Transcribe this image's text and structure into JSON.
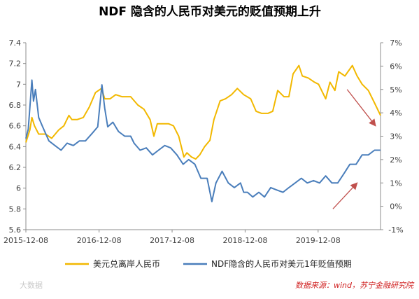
{
  "chart_data": {
    "type": "line",
    "title": "NDF 隐含的人民币对美元的贬值预期上升",
    "x_ticks": [
      "2015-12-08",
      "2016-12-08",
      "2017-12-08",
      "2018-12-08",
      "2019-12-08"
    ],
    "x_range": [
      "2015-12-08",
      "2020-10-15"
    ],
    "left_axis": {
      "ticks": [
        "5.6",
        "5.8",
        "6",
        "6.2",
        "6.4",
        "6.6",
        "6.8",
        "7",
        "7.2",
        "7.4"
      ],
      "range": [
        5.6,
        7.4
      ]
    },
    "right_axis": {
      "ticks": [
        "-1%",
        "0%",
        "1%",
        "2%",
        "3%",
        "4%",
        "5%",
        "6%",
        "7%"
      ],
      "range": [
        -1,
        7
      ]
    },
    "series": [
      {
        "name": "美元兑离岸人民币",
        "axis": "left",
        "color": "#F2B800",
        "points": [
          [
            "2015-12-08",
            6.44
          ],
          [
            "2015-12-28",
            6.56
          ],
          [
            "2016-01-07",
            6.68
          ],
          [
            "2016-01-20",
            6.6
          ],
          [
            "2016-02-10",
            6.52
          ],
          [
            "2016-03-15",
            6.52
          ],
          [
            "2016-04-15",
            6.48
          ],
          [
            "2016-05-20",
            6.56
          ],
          [
            "2016-06-15",
            6.6
          ],
          [
            "2016-07-10",
            6.7
          ],
          [
            "2016-07-25",
            6.66
          ],
          [
            "2016-08-20",
            6.66
          ],
          [
            "2016-09-20",
            6.68
          ],
          [
            "2016-10-20",
            6.78
          ],
          [
            "2016-11-20",
            6.92
          ],
          [
            "2016-12-20",
            6.96
          ],
          [
            "2017-01-05",
            6.86
          ],
          [
            "2017-02-01",
            6.86
          ],
          [
            "2017-03-01",
            6.9
          ],
          [
            "2017-04-01",
            6.88
          ],
          [
            "2017-05-15",
            6.88
          ],
          [
            "2017-06-20",
            6.8
          ],
          [
            "2017-07-20",
            6.76
          ],
          [
            "2017-08-20",
            6.66
          ],
          [
            "2017-09-08",
            6.5
          ],
          [
            "2017-09-25",
            6.62
          ],
          [
            "2017-10-25",
            6.62
          ],
          [
            "2017-11-20",
            6.62
          ],
          [
            "2017-12-15",
            6.6
          ],
          [
            "2018-01-10",
            6.5
          ],
          [
            "2018-02-05",
            6.3
          ],
          [
            "2018-02-20",
            6.34
          ],
          [
            "2018-03-15",
            6.3
          ],
          [
            "2018-04-05",
            6.28
          ],
          [
            "2018-04-25",
            6.32
          ],
          [
            "2018-05-20",
            6.4
          ],
          [
            "2018-06-15",
            6.46
          ],
          [
            "2018-07-05",
            6.66
          ],
          [
            "2018-08-05",
            6.84
          ],
          [
            "2018-09-01",
            6.86
          ],
          [
            "2018-10-01",
            6.9
          ],
          [
            "2018-10-30",
            6.96
          ],
          [
            "2018-12-01",
            6.9
          ],
          [
            "2019-01-05",
            6.86
          ],
          [
            "2019-02-01",
            6.74
          ],
          [
            "2019-03-01",
            6.72
          ],
          [
            "2019-04-01",
            6.72
          ],
          [
            "2019-04-25",
            6.74
          ],
          [
            "2019-05-20",
            6.94
          ],
          [
            "2019-06-20",
            6.88
          ],
          [
            "2019-07-15",
            6.88
          ],
          [
            "2019-08-05",
            7.1
          ],
          [
            "2019-09-03",
            7.18
          ],
          [
            "2019-09-20",
            7.08
          ],
          [
            "2019-10-20",
            7.06
          ],
          [
            "2019-11-20",
            7.02
          ],
          [
            "2019-12-10",
            7.0
          ],
          [
            "2020-01-15",
            6.86
          ],
          [
            "2020-02-05",
            7.02
          ],
          [
            "2020-03-01",
            6.94
          ],
          [
            "2020-03-20",
            7.12
          ],
          [
            "2020-04-20",
            7.08
          ],
          [
            "2020-05-27",
            7.18
          ],
          [
            "2020-06-20",
            7.08
          ],
          [
            "2020-07-15",
            7.0
          ],
          [
            "2020-08-15",
            6.94
          ],
          [
            "2020-09-15",
            6.82
          ],
          [
            "2020-10-15",
            6.7
          ]
        ]
      },
      {
        "name": "NDF隐含的人民币对美元1年贬值预期",
        "axis": "right",
        "color": "#4A7EBB",
        "points": [
          [
            "2015-12-08",
            2.9
          ],
          [
            "2015-12-20",
            3.3
          ],
          [
            "2016-01-07",
            5.4
          ],
          [
            "2016-01-15",
            4.5
          ],
          [
            "2016-01-25",
            5.0
          ],
          [
            "2016-02-10",
            3.8
          ],
          [
            "2016-03-01",
            3.4
          ],
          [
            "2016-04-01",
            2.8
          ],
          [
            "2016-05-01",
            2.6
          ],
          [
            "2016-06-01",
            2.4
          ],
          [
            "2016-07-01",
            2.7
          ],
          [
            "2016-08-01",
            2.6
          ],
          [
            "2016-09-01",
            2.8
          ],
          [
            "2016-10-01",
            2.8
          ],
          [
            "2016-11-01",
            3.1
          ],
          [
            "2016-12-01",
            3.4
          ],
          [
            "2016-12-22",
            5.2
          ],
          [
            "2017-01-05",
            4.2
          ],
          [
            "2017-01-20",
            3.4
          ],
          [
            "2017-02-15",
            3.6
          ],
          [
            "2017-03-15",
            3.2
          ],
          [
            "2017-04-15",
            3.0
          ],
          [
            "2017-05-15",
            3.0
          ],
          [
            "2017-06-01",
            2.7
          ],
          [
            "2017-07-01",
            2.4
          ],
          [
            "2017-08-01",
            2.5
          ],
          [
            "2017-09-01",
            2.2
          ],
          [
            "2017-10-01",
            2.4
          ],
          [
            "2017-11-01",
            2.6
          ],
          [
            "2017-12-01",
            2.5
          ],
          [
            "2018-01-01",
            2.2
          ],
          [
            "2018-02-01",
            1.8
          ],
          [
            "2018-03-01",
            2.0
          ],
          [
            "2018-04-01",
            1.8
          ],
          [
            "2018-05-01",
            1.2
          ],
          [
            "2018-06-01",
            1.2
          ],
          [
            "2018-06-25",
            0.2
          ],
          [
            "2018-07-15",
            1.0
          ],
          [
            "2018-08-15",
            1.5
          ],
          [
            "2018-09-15",
            1.0
          ],
          [
            "2018-10-15",
            0.8
          ],
          [
            "2018-11-15",
            1.0
          ],
          [
            "2018-12-01",
            0.6
          ],
          [
            "2018-12-20",
            0.6
          ],
          [
            "2019-01-15",
            0.4
          ],
          [
            "2019-02-15",
            0.6
          ],
          [
            "2019-03-15",
            0.4
          ],
          [
            "2019-04-15",
            0.8
          ],
          [
            "2019-05-15",
            0.7
          ],
          [
            "2019-06-15",
            0.6
          ],
          [
            "2019-07-15",
            0.8
          ],
          [
            "2019-08-15",
            1.0
          ],
          [
            "2019-09-15",
            1.2
          ],
          [
            "2019-10-15",
            1.0
          ],
          [
            "2019-11-15",
            1.1
          ],
          [
            "2019-12-15",
            1.0
          ],
          [
            "2020-01-15",
            1.3
          ],
          [
            "2020-02-15",
            1.0
          ],
          [
            "2020-03-15",
            1.0
          ],
          [
            "2020-04-15",
            1.4
          ],
          [
            "2020-05-15",
            1.8
          ],
          [
            "2020-06-15",
            1.8
          ],
          [
            "2020-07-15",
            2.2
          ],
          [
            "2020-08-15",
            2.2
          ],
          [
            "2020-09-15",
            2.4
          ],
          [
            "2020-10-15",
            2.4
          ]
        ]
      }
    ],
    "annotations": [
      {
        "type": "arrow",
        "color": "#C0504D",
        "from": [
          "2020-05-01",
          6.95
        ],
        "to": [
          "2020-09-20",
          6.6
        ],
        "axis": "left",
        "meaning": "down"
      },
      {
        "type": "arrow",
        "color": "#C0504D",
        "from": [
          "2020-02-20",
          5.8
        ],
        "to": [
          "2020-06-20",
          6.05
        ],
        "axis": "left",
        "meaning": "up"
      }
    ],
    "legend_position": "bottom",
    "grid": false
  },
  "footer": {
    "source": "数据来源：wind，苏宁金融研究院",
    "watermark": "大数据"
  }
}
